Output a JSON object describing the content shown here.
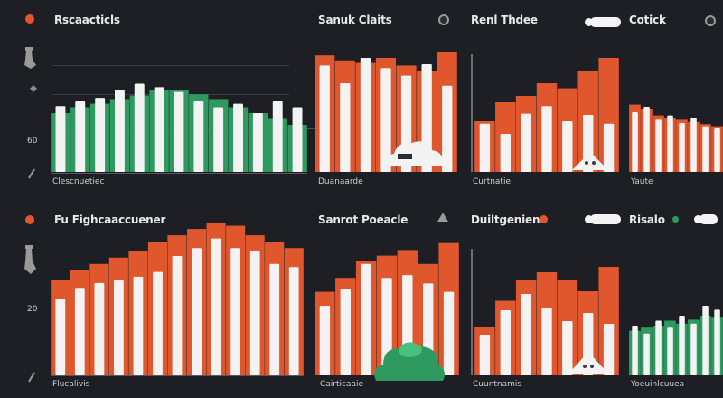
{
  "colors": {
    "background": "#1d1f25",
    "green": "#2f9a5f",
    "green_light": "#49c07e",
    "orange": "#e0572e",
    "orange_light": "#f07a45",
    "white": "#f3f3f3",
    "dark_bar": "#50535a"
  },
  "panels": [
    {
      "id": "p1",
      "title": "Rscaacticls",
      "footer": "Clescnuetiec",
      "yticks": [
        "60"
      ],
      "icons": [
        "orange-dot-icon",
        "pin-icon",
        "leaf-icon",
        "paperclip-icon"
      ],
      "chart_data": {
        "type": "bar",
        "series": [
          {
            "name": "",
            "values": [
              0.5,
              0.55,
              0.58,
              0.62,
              0.65,
              0.7,
              0.7,
              0.66,
              0.62,
              0.55,
              0.5,
              0.45,
              0.4
            ],
            "color": "green"
          },
          {
            "name": "",
            "values": [
              0.56,
              0.6,
              0.63,
              0.7,
              0.75,
              0.72,
              0.68,
              0.6,
              0.55,
              0.58,
              0.5,
              0.6,
              0.55
            ],
            "color": "white"
          }
        ]
      }
    },
    {
      "id": "p2",
      "title": "Sanuk Claits",
      "footer": "Duanaarde",
      "icons": [
        "settings-dot-icon",
        "cloud-icon"
      ],
      "chart_data": {
        "type": "bar",
        "series": [
          {
            "name": "",
            "values": [
              0.92,
              0.88,
              0.86,
              0.9,
              0.84,
              0.8,
              0.95
            ],
            "color": "orange"
          },
          {
            "name": "",
            "values": [
              0.84,
              0.7,
              0.9,
              0.82,
              0.76,
              0.85,
              0.68
            ],
            "color": "white"
          }
        ]
      }
    },
    {
      "id": "p3",
      "title": "Renl Thdee",
      "footer": "Curtnatie",
      "icons": [
        "toggle-icon",
        "slide-icon"
      ],
      "chart_data": {
        "type": "bar",
        "series": [
          {
            "name": "",
            "values": [
              0.4,
              0.55,
              0.6,
              0.7,
              0.66,
              0.8,
              0.9
            ],
            "color": "orange"
          },
          {
            "name": "",
            "values": [
              0.38,
              0.3,
              0.46,
              0.52,
              0.4,
              0.45,
              0.38
            ],
            "color": "white"
          }
        ]
      }
    },
    {
      "id": "p4",
      "title": "Cotick",
      "footer": "Yaute",
      "icons": [
        "dot-icon"
      ],
      "chart_data": {
        "type": "bar",
        "series": [
          {
            "name": "",
            "values": [
              0.62,
              0.58,
              0.52,
              0.5,
              0.48,
              0.46,
              0.44,
              0.42
            ],
            "color": "orange"
          },
          {
            "name": "",
            "values": [
              0.55,
              0.6,
              0.48,
              0.52,
              0.45,
              0.5,
              0.42,
              0.4
            ],
            "color": "white"
          }
        ]
      }
    },
    {
      "id": "p5",
      "title": "Fu Fighcaaccuener",
      "footer": "Flucalivis",
      "yticks": [
        "20"
      ],
      "icons": [
        "orange-dot-icon",
        "pin-icon",
        "paperclip-icon"
      ],
      "chart_data": {
        "type": "bar",
        "series": [
          {
            "name": "",
            "values": [
              0.6,
              0.66,
              0.7,
              0.74,
              0.78,
              0.84,
              0.88,
              0.92,
              0.96,
              0.94,
              0.88,
              0.84,
              0.8
            ],
            "color": "orange"
          },
          {
            "name": "",
            "values": [
              0.48,
              0.55,
              0.58,
              0.6,
              0.62,
              0.65,
              0.75,
              0.8,
              0.86,
              0.8,
              0.78,
              0.7,
              0.68
            ],
            "color": "white"
          }
        ]
      }
    },
    {
      "id": "p6",
      "title": "Sanrot Poeacle",
      "footer": "Cairticaaie",
      "icons": [
        "settings-dot-icon",
        "cloud-icon"
      ],
      "chart_data": {
        "type": "bar",
        "series": [
          {
            "name": "",
            "values": [
              0.6,
              0.7,
              0.82,
              0.86,
              0.9,
              0.8,
              0.95
            ],
            "color": "orange"
          },
          {
            "name": "",
            "values": [
              0.5,
              0.62,
              0.8,
              0.7,
              0.72,
              0.66,
              0.6
            ],
            "color": "white"
          }
        ]
      }
    },
    {
      "id": "p7",
      "title": "Duiltgenien",
      "footer": "Cuuntnamis",
      "icons": [
        "orange-dot-icon",
        "toggle-icon",
        "slide-icon"
      ],
      "chart_data": {
        "type": "bar",
        "series": [
          {
            "name": "",
            "values": [
              0.36,
              0.55,
              0.7,
              0.76,
              0.7,
              0.62,
              0.8
            ],
            "color": "orange"
          },
          {
            "name": "",
            "values": [
              0.3,
              0.48,
              0.6,
              0.5,
              0.4,
              0.46,
              0.38
            ],
            "color": "white"
          }
        ]
      }
    },
    {
      "id": "p8",
      "title": "Risalo",
      "footer": "Yoeuinlcuuea",
      "icons": [
        "green-dot-icon",
        "toggle-icon"
      ],
      "chart_data": {
        "type": "bar",
        "series": [
          {
            "name": "",
            "values": [
              0.45,
              0.48,
              0.5,
              0.55,
              0.52,
              0.56,
              0.6,
              0.58
            ],
            "color": "green"
          },
          {
            "name": "",
            "values": [
              0.5,
              0.42,
              0.55,
              0.48,
              0.6,
              0.52,
              0.7,
              0.66
            ],
            "color": "white"
          }
        ]
      }
    }
  ]
}
